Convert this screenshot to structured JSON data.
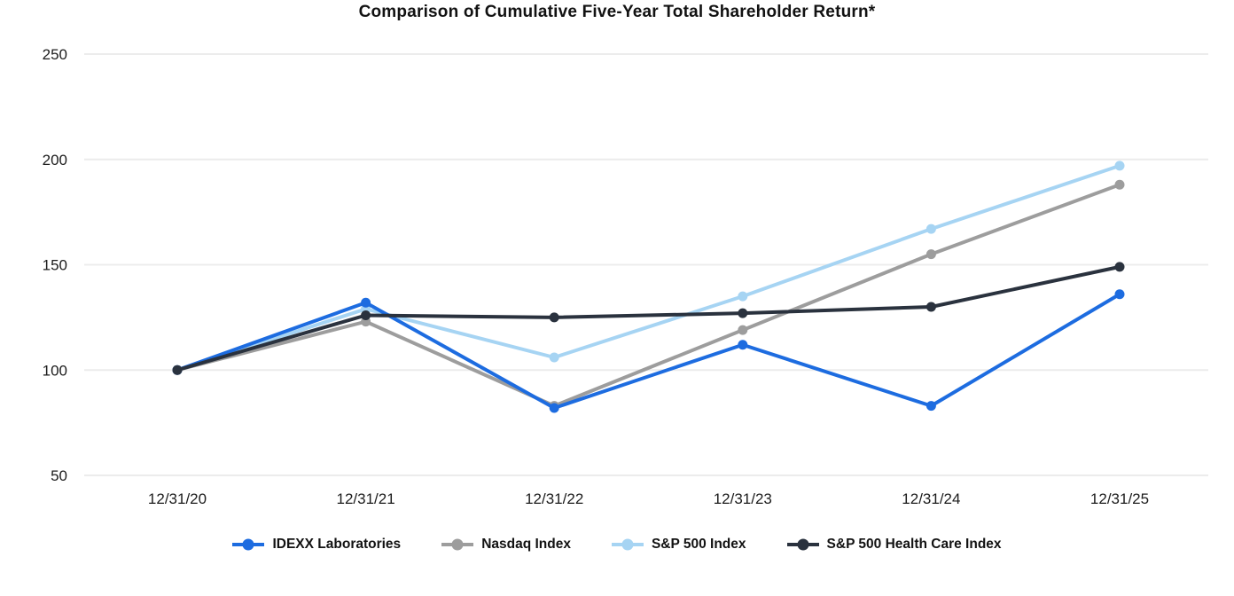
{
  "title": "Comparison of Cumulative Five-Year Total Shareholder Return*",
  "colors": {
    "background": "#ffffff",
    "gridline": "#ececec",
    "tick_text": "#1c1c1c",
    "title_text": "#121212"
  },
  "chart_data": {
    "type": "line",
    "title": "Comparison of Cumulative Five-Year Total Shareholder Return*",
    "categories": [
      "12/31/20",
      "12/31/21",
      "12/31/22",
      "12/31/23",
      "12/31/24",
      "12/31/25"
    ],
    "series": [
      {
        "name": "IDEXX Laboratories",
        "color": "#1d6ce0",
        "values": [
          100,
          132,
          82,
          112,
          83,
          136
        ]
      },
      {
        "name": "Nasdaq Index",
        "color": "#9d9d9d",
        "values": [
          100,
          123,
          83,
          119,
          155,
          188
        ]
      },
      {
        "name": "S&P 500 Index",
        "color": "#a6d4f3",
        "values": [
          100,
          129,
          106,
          135,
          167,
          197
        ]
      },
      {
        "name": "S&P 500 Health Care Index",
        "color": "#2a323e",
        "values": [
          100,
          126,
          125,
          127,
          130,
          149
        ]
      }
    ],
    "xlabel": "",
    "ylabel": "",
    "y_ticks": [
      50,
      100,
      150,
      200,
      250
    ],
    "ylim": [
      50,
      250
    ],
    "grid": "horizontal",
    "legend_position": "bottom",
    "marker": "circle",
    "line_width": 4,
    "marker_radius": 5.5,
    "z_order_series_indices": [
      2,
      1,
      0,
      3
    ]
  }
}
